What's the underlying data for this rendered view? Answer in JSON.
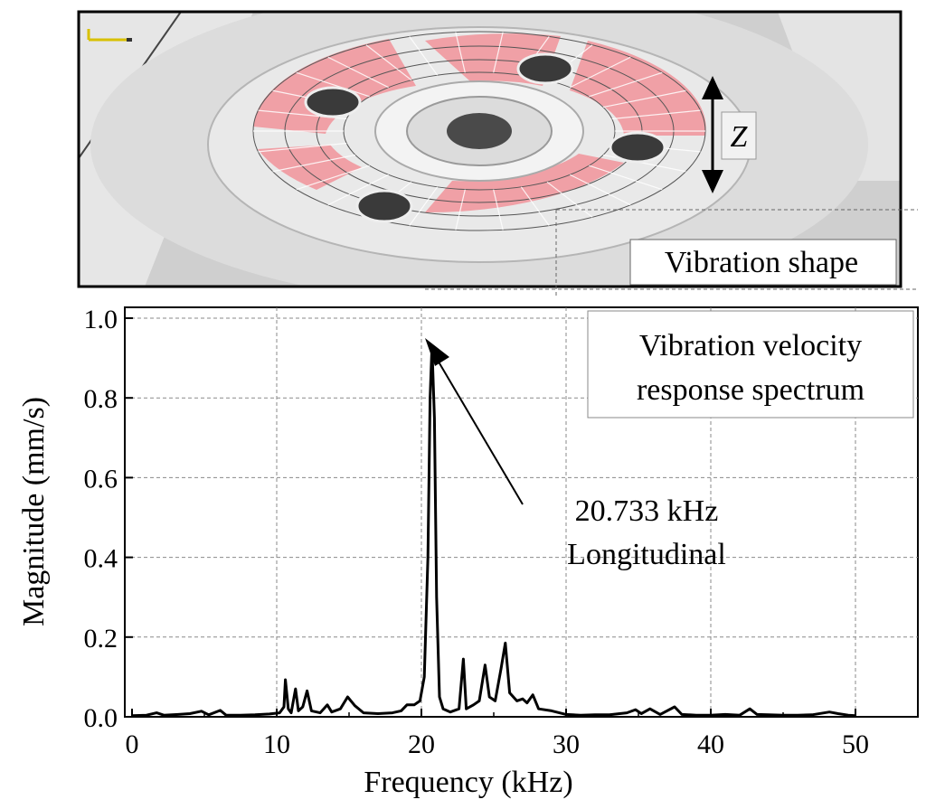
{
  "photo": {
    "caption": "Vibration shape",
    "axis_symbol": "Z"
  },
  "annotation": {
    "freq_text": "20.733 kHz",
    "mode_text": "Longitudinal"
  },
  "legend": {
    "line1": "Vibration velocity",
    "line2": "response spectrum"
  },
  "colors": {
    "plate": "#d6d6d6",
    "mesh": "#f0a0a6",
    "line": "#000000",
    "grid": "#8a8a8a"
  },
  "chart_data": {
    "type": "line",
    "title": "",
    "xlabel": "Frequency (kHz)",
    "ylabel": "Magnitude (mm/s)",
    "xlim": [
      0,
      55
    ],
    "ylim": [
      0,
      1.0
    ],
    "xticks": [
      "0",
      "10",
      "20",
      "30",
      "40",
      "50"
    ],
    "yticks": [
      "0.0",
      "0.2",
      "0.4",
      "0.6",
      "0.8",
      "1.0"
    ],
    "grid": true,
    "legend_position": "top-right",
    "series": [
      {
        "points": [
          [
            0,
            0.003
          ],
          [
            1,
            0.004
          ],
          [
            1.7,
            0.01
          ],
          [
            2.2,
            0.004
          ],
          [
            3.2,
            0.006
          ],
          [
            4.0,
            0.008
          ],
          [
            4.8,
            0.014
          ],
          [
            5.3,
            0.005
          ],
          [
            6.1,
            0.016
          ],
          [
            6.5,
            0.004
          ],
          [
            7.5,
            0.004
          ],
          [
            8.5,
            0.005
          ],
          [
            9.5,
            0.007
          ],
          [
            10.2,
            0.01
          ],
          [
            10.5,
            0.025
          ],
          [
            10.6,
            0.093
          ],
          [
            10.8,
            0.02
          ],
          [
            11.0,
            0.01
          ],
          [
            11.3,
            0.07
          ],
          [
            11.5,
            0.015
          ],
          [
            11.8,
            0.025
          ],
          [
            12.1,
            0.065
          ],
          [
            12.4,
            0.015
          ],
          [
            13.0,
            0.01
          ],
          [
            13.5,
            0.03
          ],
          [
            13.8,
            0.012
          ],
          [
            14.4,
            0.02
          ],
          [
            14.9,
            0.05
          ],
          [
            15.4,
            0.028
          ],
          [
            16.0,
            0.01
          ],
          [
            17.0,
            0.008
          ],
          [
            18.0,
            0.01
          ],
          [
            18.6,
            0.015
          ],
          [
            19.0,
            0.03
          ],
          [
            19.5,
            0.03
          ],
          [
            19.9,
            0.04
          ],
          [
            20.2,
            0.1
          ],
          [
            20.45,
            0.4
          ],
          [
            20.6,
            0.8
          ],
          [
            20.733,
            0.93
          ],
          [
            20.9,
            0.75
          ],
          [
            21.05,
            0.3
          ],
          [
            21.25,
            0.05
          ],
          [
            21.5,
            0.02
          ],
          [
            22.0,
            0.012
          ],
          [
            22.6,
            0.02
          ],
          [
            22.9,
            0.145
          ],
          [
            23.1,
            0.02
          ],
          [
            23.6,
            0.03
          ],
          [
            24.0,
            0.04
          ],
          [
            24.4,
            0.13
          ],
          [
            24.7,
            0.05
          ],
          [
            25.1,
            0.04
          ],
          [
            25.5,
            0.12
          ],
          [
            25.8,
            0.185
          ],
          [
            26.1,
            0.06
          ],
          [
            26.6,
            0.04
          ],
          [
            27.0,
            0.045
          ],
          [
            27.3,
            0.035
          ],
          [
            27.7,
            0.055
          ],
          [
            28.1,
            0.02
          ],
          [
            29.0,
            0.015
          ],
          [
            30.0,
            0.006
          ],
          [
            31.0,
            0.004
          ],
          [
            32.0,
            0.005
          ],
          [
            33.0,
            0.005
          ],
          [
            34.2,
            0.01
          ],
          [
            34.8,
            0.018
          ],
          [
            35.2,
            0.008
          ],
          [
            35.8,
            0.02
          ],
          [
            36.5,
            0.006
          ],
          [
            37.5,
            0.025
          ],
          [
            38.0,
            0.006
          ],
          [
            39.0,
            0.004
          ],
          [
            40.0,
            0.004
          ],
          [
            41.0,
            0.006
          ],
          [
            42.0,
            0.004
          ],
          [
            42.7,
            0.02
          ],
          [
            43.2,
            0.006
          ],
          [
            44.0,
            0.005
          ],
          [
            45.0,
            0.004
          ],
          [
            46.0,
            0.004
          ],
          [
            47.0,
            0.005
          ],
          [
            48.2,
            0.012
          ],
          [
            48.8,
            0.008
          ],
          [
            49.5,
            0.004
          ],
          [
            50,
            0.003
          ]
        ]
      }
    ]
  }
}
